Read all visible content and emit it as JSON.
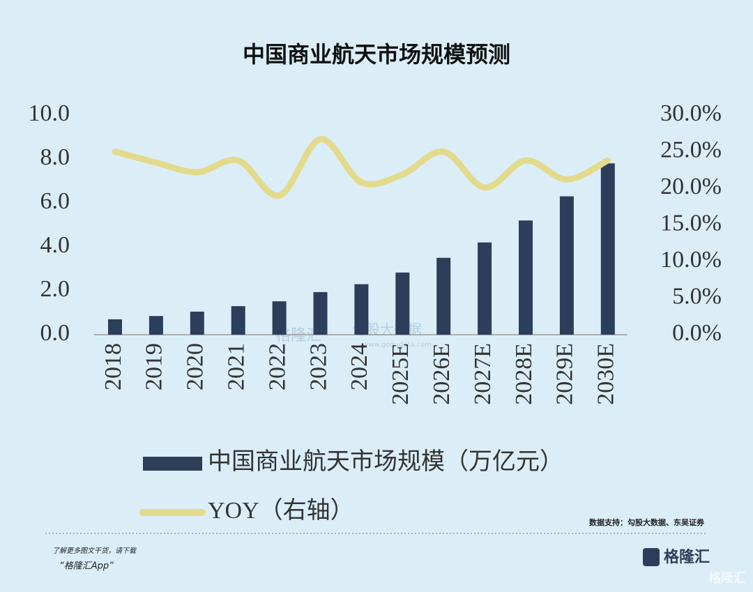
{
  "chart_data": {
    "type": "bar-line",
    "title": "中国商业航天市场规模预测",
    "categories": [
      "2018",
      "2019",
      "2020",
      "2021",
      "2022",
      "2023",
      "2024",
      "2025E",
      "2026E",
      "2027E",
      "2028E",
      "2029E",
      "2030E"
    ],
    "series": [
      {
        "name": "中国商业航天市场规模（万亿元）",
        "type": "bar",
        "color": "#2d3e5a",
        "values": [
          0.7,
          0.85,
          1.05,
          1.3,
          1.52,
          1.94,
          2.3,
          2.83,
          3.5,
          4.2,
          5.2,
          6.3,
          7.8
        ]
      },
      {
        "name": "YOY（右轴）",
        "type": "line",
        "axis": "y2",
        "color": "#e3da8c",
        "values": [
          25.0,
          23.5,
          22.2,
          23.8,
          19.0,
          26.7,
          20.8,
          21.9,
          25.0,
          20.1,
          23.8,
          21.2,
          23.8
        ]
      }
    ],
    "ylim": [
      0,
      10
    ],
    "yticks": [
      {
        "value": 0,
        "label": "0.0"
      },
      {
        "value": 2,
        "label": "2.0"
      },
      {
        "value": 4,
        "label": "4.0"
      },
      {
        "value": 6,
        "label": "6.0"
      },
      {
        "value": 8,
        "label": "8.0"
      },
      {
        "value": 10,
        "label": "10.0"
      }
    ],
    "y2lim": [
      0,
      30
    ],
    "y2ticks": [
      {
        "value": 0,
        "label": "0.0%"
      },
      {
        "value": 5,
        "label": "5.0%"
      },
      {
        "value": 10,
        "label": "10.0%"
      },
      {
        "value": 15,
        "label": "15.0%"
      },
      {
        "value": 20,
        "label": "20.0%"
      },
      {
        "value": 25,
        "label": "25.0%"
      },
      {
        "value": 30,
        "label": "30.0%"
      }
    ],
    "grid": false,
    "legend": "bottom"
  },
  "page": {
    "source": "数据支持：勾股大数据、东吴证券",
    "footer_line1": "了解更多图文干货，请下载",
    "footer_line2": "“格隆汇App”",
    "logo": "格隆汇",
    "corner_watermark": "格隆汇",
    "center_watermark_1": "格隆汇",
    "center_watermark_2": "勾股大数据",
    "center_watermark_3": "www.gogudata.com"
  }
}
